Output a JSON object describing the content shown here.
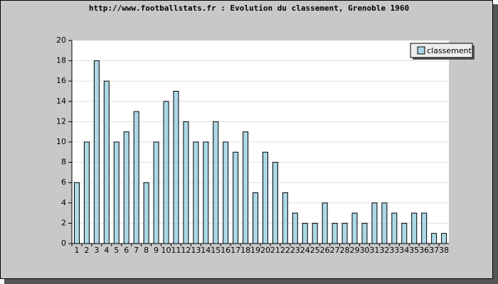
{
  "chart_data": {
    "type": "bar",
    "title": "http://www.footballstats.fr : Evolution du classement, Grenoble 1960",
    "categories": [
      "1",
      "2",
      "3",
      "4",
      "5",
      "6",
      "7",
      "8",
      "9",
      "10",
      "11",
      "12",
      "13",
      "14",
      "15",
      "16",
      "17",
      "18",
      "19",
      "20",
      "21",
      "22",
      "23",
      "24",
      "25",
      "26",
      "27",
      "28",
      "29",
      "30",
      "31",
      "32",
      "33",
      "34",
      "35",
      "36",
      "37",
      "38"
    ],
    "series": [
      {
        "name": "classement",
        "color": "#add8e6",
        "values": [
          6,
          10,
          18,
          16,
          10,
          11,
          13,
          6,
          10,
          14,
          15,
          12,
          10,
          10,
          12,
          10,
          9,
          11,
          5,
          9,
          8,
          5,
          3,
          2,
          2,
          4,
          2,
          2,
          3,
          2,
          4,
          4,
          3,
          2,
          3,
          3,
          1,
          1
        ]
      }
    ],
    "ylim": [
      0,
      20
    ],
    "yticks": [
      0,
      2,
      4,
      6,
      8,
      10,
      12,
      14,
      16,
      18,
      20
    ],
    "grid": true,
    "legend": "top-right"
  }
}
